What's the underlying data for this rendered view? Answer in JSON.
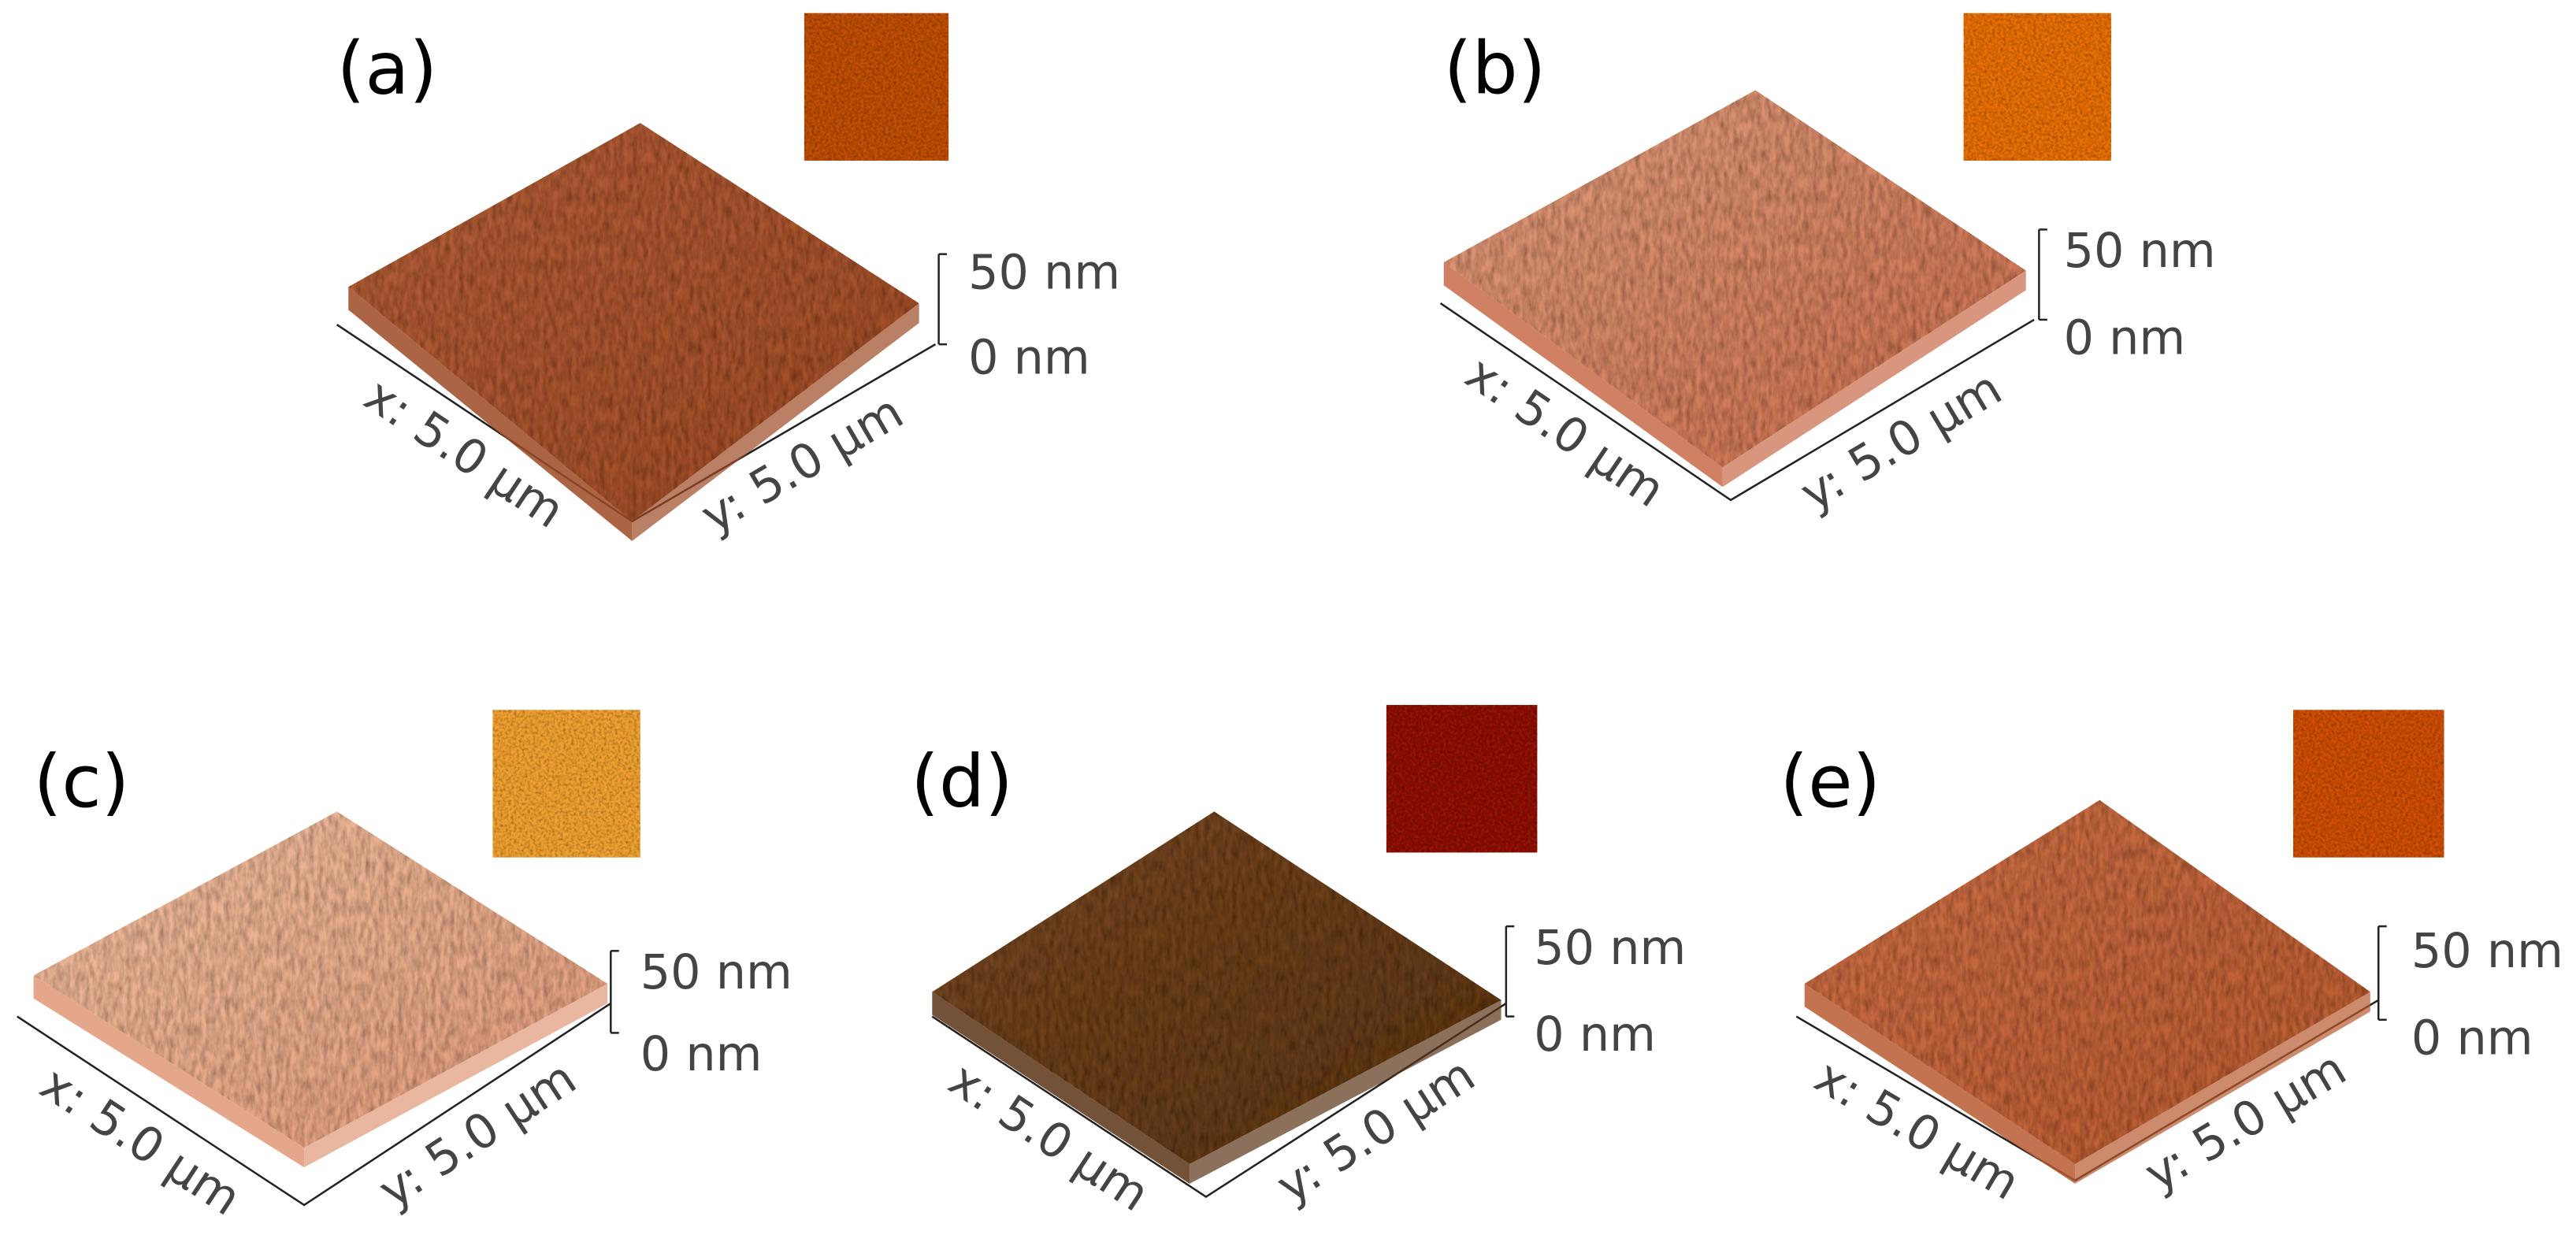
{
  "panels": [
    {
      "label": "(a)",
      "x_label": "x: 5.0 µm",
      "y_label": "y: 5.0 µm",
      "z_top": "50 nm",
      "z_bottom": "0 nm"
    },
    {
      "label": "(b)",
      "x_label": "x: 5.0 µm",
      "y_label": "y: 5.0 µm",
      "z_top": "50 nm",
      "z_bottom": "0 nm"
    },
    {
      "label": "(c)",
      "x_label": "x: 5.0 µm",
      "y_label": "y: 5.0 µm",
      "z_top": "50 nm",
      "z_bottom": "0 nm"
    },
    {
      "label": "(d)",
      "x_label": "x: 5.0 µm",
      "y_label": "y: 5.0 µm",
      "z_top": "50 nm",
      "z_bottom": "0 nm"
    },
    {
      "label": "(e)",
      "x_label": "x: 5.0 µm",
      "y_label": "y: 5.0 µm",
      "z_top": "50 nm",
      "z_bottom": "0 nm"
    }
  ]
}
